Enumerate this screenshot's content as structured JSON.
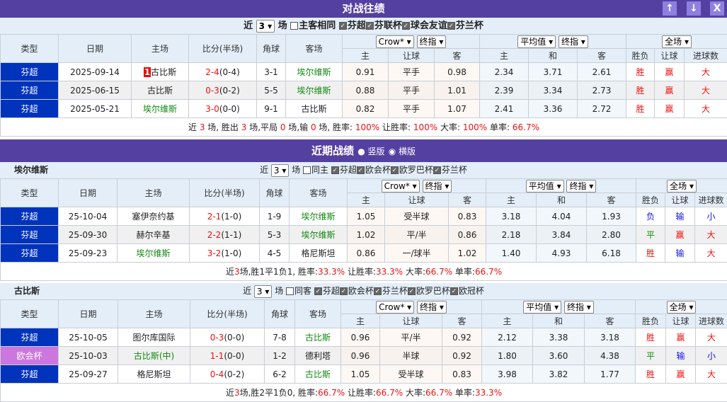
{
  "header": {
    "title": "对战往绩",
    "up": "↑",
    "down": "↓",
    "close": "X"
  },
  "h2h": {
    "filter": {
      "prefix": "近",
      "count": "3",
      "suffix": "场",
      "same_label": "主客相同",
      "same_checked": false,
      "leagues": [
        "芬超",
        "芬联杯",
        "球会友谊",
        "芬兰杯"
      ]
    },
    "team": "",
    "rows": [
      {
        "type": "芬超",
        "date": "2025-09-14",
        "home": "古比斯",
        "home_rank": "1",
        "home_hl": false,
        "score": "2-4",
        "half": "(0-4)",
        "corner": "3-1",
        "away": "埃尔维斯",
        "away_hl": true,
        "o1": [
          "0.91",
          "平手",
          "0.98"
        ],
        "o2": [
          "2.34",
          "3.71",
          "2.61"
        ],
        "res": [
          "胜",
          "赢",
          "大"
        ]
      },
      {
        "type": "芬超",
        "date": "2025-06-15",
        "home": "古比斯",
        "home_hl": false,
        "score": "0-3",
        "half": "(0-2)",
        "corner": "5-5",
        "away": "埃尔维斯",
        "away_hl": true,
        "o1": [
          "0.88",
          "平手",
          "1.01"
        ],
        "o2": [
          "2.39",
          "3.34",
          "2.73"
        ],
        "res": [
          "胜",
          "赢",
          "大"
        ]
      },
      {
        "type": "芬超",
        "date": "2025-05-21",
        "home": "埃尔维斯",
        "home_hl": true,
        "score": "3-0",
        "half": "(0-0)",
        "corner": "9-1",
        "away": "古比斯",
        "away_hl": false,
        "o1": [
          "0.82",
          "平手",
          "1.07"
        ],
        "o2": [
          "2.41",
          "3.36",
          "2.72"
        ],
        "res": [
          "胜",
          "赢",
          "大"
        ]
      }
    ],
    "summary": [
      [
        "近 ",
        0
      ],
      [
        "3",
        1
      ],
      [
        " 场, 胜出 ",
        0
      ],
      [
        "3",
        1
      ],
      [
        " 场,平局 ",
        0
      ],
      [
        "0",
        1
      ],
      [
        " 场,输 ",
        0
      ],
      [
        "0",
        1
      ],
      [
        " 场, 胜率: ",
        0
      ],
      [
        "100%",
        1
      ],
      [
        " 让胜率: ",
        0
      ],
      [
        "100%",
        1
      ],
      [
        " 大率: ",
        0
      ],
      [
        "100%",
        1
      ],
      [
        " 单率: ",
        0
      ],
      [
        "66.7%",
        1
      ]
    ]
  },
  "recent": {
    "title": "近期战绩",
    "opt1": "竖版",
    "opt2": "横版"
  },
  "team1": {
    "filter": {
      "prefix": "近",
      "count": "3",
      "suffix": "场",
      "same_label": "同主",
      "same_checked": false,
      "leagues": [
        "芬超",
        "欧会杯",
        "欧罗巴杯",
        "芬兰杯"
      ]
    },
    "team": "埃尔维斯",
    "rows": [
      {
        "type": "芬超",
        "date": "25-10-04",
        "home": "塞伊奈约基",
        "home_hl": false,
        "score": "2-1",
        "half": "(1-0)",
        "corner": "1-9",
        "away": "埃尔维斯",
        "away_hl": true,
        "o1": [
          "1.05",
          "受半球",
          "0.83"
        ],
        "o2": [
          "3.18",
          "4.04",
          "1.93"
        ],
        "res": [
          "负",
          "输",
          "小"
        ]
      },
      {
        "type": "芬超",
        "date": "25-09-30",
        "home": "赫尔辛基",
        "home_hl": false,
        "score": "2-2",
        "half": "(1-1)",
        "corner": "5-3",
        "away": "埃尔维斯",
        "away_hl": true,
        "o1": [
          "1.02",
          "平/半",
          "0.86"
        ],
        "o2": [
          "2.18",
          "3.84",
          "2.80"
        ],
        "res": [
          "平",
          "赢",
          "大"
        ]
      },
      {
        "type": "芬超",
        "date": "25-09-23",
        "home": "埃尔维斯",
        "home_hl": true,
        "score": "3-2",
        "half": "(1-0)",
        "corner": "4-5",
        "away": "格尼斯坦",
        "away_hl": false,
        "o1": [
          "0.86",
          "一/球半",
          "1.02"
        ],
        "o2": [
          "1.40",
          "4.93",
          "6.18"
        ],
        "res": [
          "胜",
          "输",
          "大"
        ]
      }
    ],
    "summary": [
      [
        "近",
        0
      ],
      [
        "3",
        1
      ],
      [
        "场,胜1平1负1, 胜率:",
        0
      ],
      [
        "33.3%",
        1
      ],
      [
        " 让胜率:",
        0
      ],
      [
        "33.3%",
        1
      ],
      [
        " 大率:",
        0
      ],
      [
        "66.7%",
        1
      ],
      [
        " 单率:",
        0
      ],
      [
        "66.7%",
        1
      ]
    ]
  },
  "team2": {
    "filter": {
      "prefix": "近",
      "count": "3",
      "suffix": "场",
      "same_label": "同客",
      "same_checked": false,
      "leagues": [
        "芬超",
        "欧会杯",
        "芬兰杯",
        "欧罗巴杯",
        "欧冠杯"
      ]
    },
    "team": "古比斯",
    "rows": [
      {
        "type": "芬超",
        "date": "25-10-05",
        "home": "图尔库国际",
        "home_hl": false,
        "score": "0-3",
        "half": "(0-0)",
        "corner": "7-8",
        "away": "古比斯",
        "away_hl": true,
        "o1": [
          "0.96",
          "平/半",
          "0.92"
        ],
        "o2": [
          "2.12",
          "3.38",
          "3.18"
        ],
        "res": [
          "胜",
          "赢",
          "大"
        ]
      },
      {
        "type": "欧会杯",
        "date": "25-10-03",
        "home": "古比斯(中)",
        "home_hl": true,
        "score": "1-1",
        "half": "(0-0)",
        "corner": "1-2",
        "away": "德利塔",
        "away_hl": false,
        "o1": [
          "0.96",
          "半球",
          "0.92"
        ],
        "o2": [
          "1.80",
          "3.60",
          "4.38"
        ],
        "res": [
          "平",
          "输",
          "小"
        ]
      },
      {
        "type": "芬超",
        "date": "25-09-27",
        "home": "格尼斯坦",
        "home_hl": false,
        "score": "0-4",
        "half": "(0-2)",
        "corner": "6-2",
        "away": "古比斯",
        "away_hl": true,
        "o1": [
          "1.05",
          "受半球",
          "0.83"
        ],
        "o2": [
          "3.98",
          "3.82",
          "1.77"
        ],
        "res": [
          "胜",
          "赢",
          "大"
        ]
      }
    ],
    "summary": [
      [
        "近",
        0
      ],
      [
        "3",
        1
      ],
      [
        "场,胜2平1负0, 胜率:",
        0
      ],
      [
        "66.7%",
        1
      ],
      [
        " 让胜率:",
        0
      ],
      [
        "66.7%",
        1
      ],
      [
        " 大率:",
        0
      ],
      [
        "66.7%",
        1
      ],
      [
        " 单率:",
        0
      ],
      [
        "33.3%",
        1
      ]
    ]
  },
  "columns": {
    "type": "类型",
    "date": "日期",
    "home": "主场",
    "score": "比分(半场)",
    "corner": "角球",
    "away": "客场",
    "company": "Crow*",
    "odds_kind": "终指",
    "avg": "平均值",
    "avg_kind": "终指",
    "period": "全场",
    "o1": [
      "主",
      "让球",
      "客"
    ],
    "o2": [
      "主",
      "和",
      "客"
    ],
    "res": [
      "胜负",
      "让球",
      "进球数"
    ]
  },
  "colors": {
    "header": "#5440a0",
    "league_finnish": "#0033bb",
    "league_cup": "#cc77dd",
    "win": "#ee1111",
    "lose": "#1111ee",
    "draw": "#118811"
  }
}
